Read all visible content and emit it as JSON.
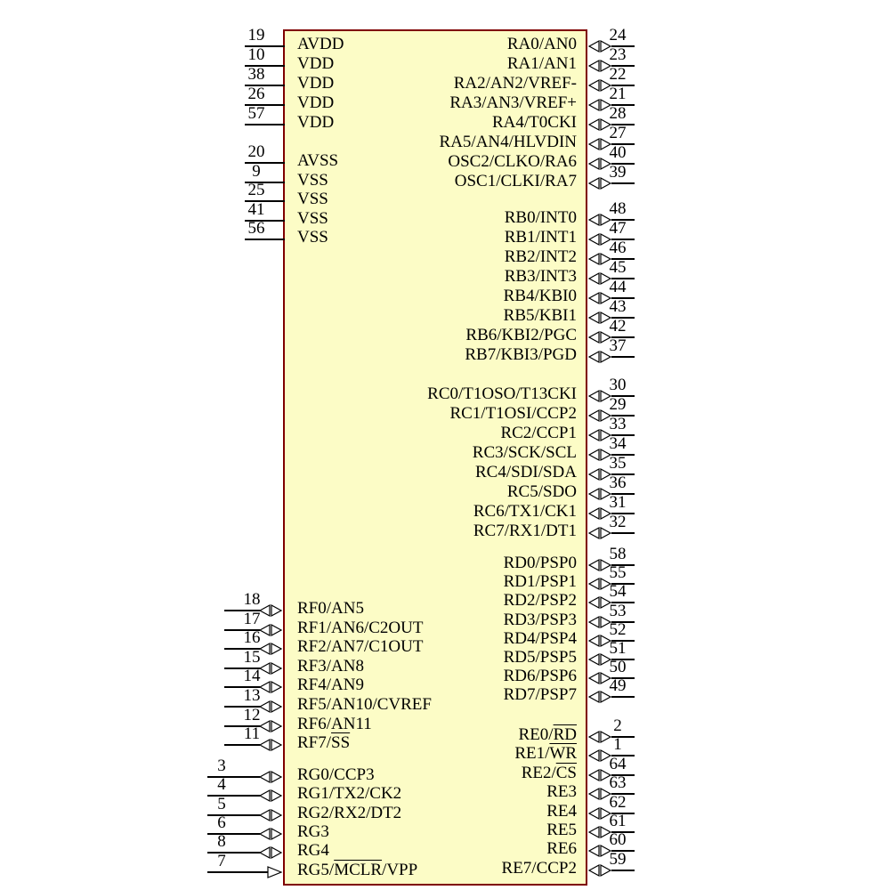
{
  "diagram": {
    "type": "microcontroller-pinout-schematic",
    "colors": {
      "background": "#FFFFFF",
      "chip_fill": "#FCFCC6",
      "chip_border": "#7F0000",
      "wire": "#000000",
      "text": "#000000"
    },
    "left_groups": [
      {
        "id": "power",
        "arrow": "none",
        "pins": [
          {
            "num": "19",
            "name": "AVDD"
          },
          {
            "num": "10",
            "name": "VDD"
          },
          {
            "num": "38",
            "name": "VDD"
          },
          {
            "num": "26",
            "name": "VDD"
          },
          {
            "num": "57",
            "name": "VDD"
          }
        ]
      },
      {
        "id": "ground",
        "arrow": "none",
        "pins": [
          {
            "num": "20",
            "name": "AVSS"
          },
          {
            "num": "9",
            "name": "VSS"
          },
          {
            "num": "25",
            "name": "VSS"
          },
          {
            "num": "41",
            "name": "VSS"
          },
          {
            "num": "56",
            "name": "VSS"
          }
        ]
      },
      {
        "id": "portf",
        "arrow": "bidir",
        "pins": [
          {
            "num": "18",
            "name": "RF0/AN5"
          },
          {
            "num": "17",
            "name": "RF1/AN6/C2OUT"
          },
          {
            "num": "16",
            "name": "RF2/AN7/C1OUT"
          },
          {
            "num": "15",
            "name": "RF3/AN8"
          },
          {
            "num": "14",
            "name": "RF4/AN9"
          },
          {
            "num": "13",
            "name": "RF5/AN10/CVREF"
          },
          {
            "num": "12",
            "name": "RF6/AN11"
          },
          {
            "num": "11",
            "name": "RF7/{SS}"
          }
        ]
      },
      {
        "id": "portg",
        "arrow": "bidir",
        "pins": [
          {
            "num": "3",
            "name": "RG0/CCP3"
          },
          {
            "num": "4",
            "name": "RG1/TX2/CK2"
          },
          {
            "num": "5",
            "name": "RG2/RX2/DT2"
          },
          {
            "num": "6",
            "name": "RG3"
          },
          {
            "num": "8",
            "name": "RG4"
          },
          {
            "num": "7",
            "name": "RG5/{MCLR}/VPP",
            "arrow": "input"
          }
        ]
      }
    ],
    "right_groups": [
      {
        "id": "porta",
        "arrow": "bidir",
        "pins": [
          {
            "num": "24",
            "name": "RA0/AN0"
          },
          {
            "num": "23",
            "name": "RA1/AN1"
          },
          {
            "num": "22",
            "name": "RA2/AN2/VREF-"
          },
          {
            "num": "21",
            "name": "RA3/AN3/VREF+"
          },
          {
            "num": "28",
            "name": "RA4/T0CKI"
          },
          {
            "num": "27",
            "name": "RA5/AN4/HLVDIN"
          },
          {
            "num": "40",
            "name": "OSC2/CLKO/RA6"
          },
          {
            "num": "39",
            "name": "OSC1/CLKI/RA7"
          }
        ]
      },
      {
        "id": "portb",
        "arrow": "bidir",
        "pins": [
          {
            "num": "48",
            "name": "RB0/INT0"
          },
          {
            "num": "47",
            "name": "RB1/INT1"
          },
          {
            "num": "46",
            "name": "RB2/INT2"
          },
          {
            "num": "45",
            "name": "RB3/INT3"
          },
          {
            "num": "44",
            "name": "RB4/KBI0"
          },
          {
            "num": "43",
            "name": "RB5/KBI1"
          },
          {
            "num": "42",
            "name": "RB6/KBI2/PGC"
          },
          {
            "num": "37",
            "name": "RB7/KBI3/PGD"
          }
        ]
      },
      {
        "id": "portc",
        "arrow": "bidir",
        "pins": [
          {
            "num": "30",
            "name": "RC0/T1OSO/T13CKI"
          },
          {
            "num": "29",
            "name": "RC1/T1OSI/CCP2"
          },
          {
            "num": "33",
            "name": "RC2/CCP1"
          },
          {
            "num": "34",
            "name": "RC3/SCK/SCL"
          },
          {
            "num": "35",
            "name": "RC4/SDI/SDA"
          },
          {
            "num": "36",
            "name": "RC5/SDO"
          },
          {
            "num": "31",
            "name": "RC6/TX1/CK1"
          },
          {
            "num": "32",
            "name": "RC7/RX1/DT1"
          }
        ]
      },
      {
        "id": "portd",
        "arrow": "bidir",
        "pins": [
          {
            "num": "58",
            "name": "RD0/PSP0"
          },
          {
            "num": "55",
            "name": "RD1/PSP1"
          },
          {
            "num": "54",
            "name": "RD2/PSP2"
          },
          {
            "num": "53",
            "name": "RD3/PSP3"
          },
          {
            "num": "52",
            "name": "RD4/PSP4"
          },
          {
            "num": "51",
            "name": "RD5/PSP5"
          },
          {
            "num": "50",
            "name": "RD6/PSP6"
          },
          {
            "num": "49",
            "name": "RD7/PSP7"
          }
        ]
      },
      {
        "id": "porte",
        "arrow": "bidir",
        "pins": [
          {
            "num": "2",
            "name": "RE0/{RD}"
          },
          {
            "num": "1",
            "name": "RE1/{WR}"
          },
          {
            "num": "64",
            "name": "RE2/{CS}"
          },
          {
            "num": "63",
            "name": "RE3"
          },
          {
            "num": "62",
            "name": "RE4"
          },
          {
            "num": "61",
            "name": "RE5"
          },
          {
            "num": "60",
            "name": "RE6"
          },
          {
            "num": "59",
            "name": "RE7/CCP2"
          }
        ]
      }
    ]
  }
}
